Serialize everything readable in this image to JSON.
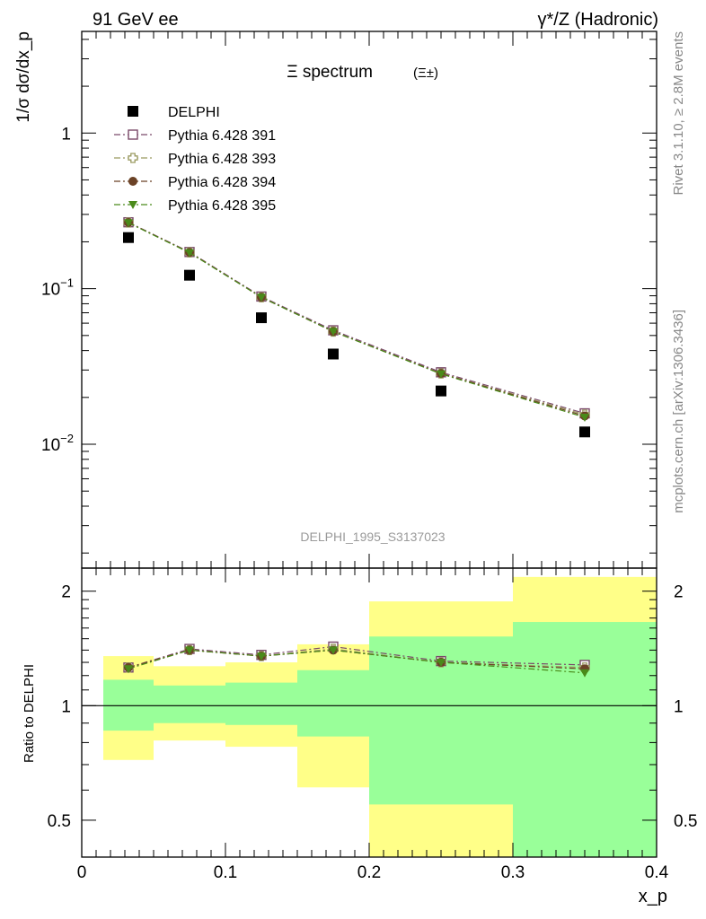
{
  "header": {
    "left": "91 GeV ee",
    "right": "γ*/Z (Hadronic)"
  },
  "side_labels": {
    "top": "Rivet 3.1.10, ≥ 2.8M events",
    "bottom": "mcplots.cern.ch [arXiv:1306.3436]"
  },
  "watermark": "DELPHI_1995_S3137023",
  "chart_data": [
    {
      "type": "scatter",
      "panel": "main",
      "title": "Ξ spectrum (Ξ±)",
      "title_main": "Ξ spectrum",
      "title_sub": "(Ξ±)",
      "ylabel": "1/σ dσ/dx_p",
      "yscale": "log",
      "ylim": [
        0.0016,
        4.5
      ],
      "xlim": [
        0,
        0.4
      ],
      "y_ticks": [
        {
          "value": 1,
          "label": "1"
        },
        {
          "value": 0.1,
          "label": "10",
          "exp": "−1"
        },
        {
          "value": 0.01,
          "label": "10",
          "exp": "−2"
        }
      ],
      "legend_position": "top-left",
      "series": [
        {
          "name": "DELPHI",
          "color": "#000000",
          "marker": "filled-square",
          "x": [
            0.0325,
            0.075,
            0.125,
            0.175,
            0.25,
            0.35
          ],
          "y": [
            0.213,
            0.122,
            0.065,
            0.038,
            0.022,
            0.012
          ]
        },
        {
          "name": "Pythia 6.428 391",
          "color": "#7a4a6a",
          "marker": "open-square",
          "dash": "dash-dot",
          "x": [
            0.0325,
            0.075,
            0.125,
            0.175,
            0.25,
            0.35
          ],
          "y": [
            0.267,
            0.172,
            0.089,
            0.054,
            0.029,
            0.0158
          ]
        },
        {
          "name": "Pythia 6.428 393",
          "color": "#9a9a60",
          "marker": "open-cross",
          "dash": "dash-dot",
          "x": [
            0.0325,
            0.075,
            0.125,
            0.175,
            0.25,
            0.35
          ],
          "y": [
            0.266,
            0.171,
            0.088,
            0.053,
            0.0285,
            0.0155
          ]
        },
        {
          "name": "Pythia 6.428 394",
          "color": "#6b4226",
          "marker": "filled-circle",
          "dash": "dash-dot",
          "x": [
            0.0325,
            0.075,
            0.125,
            0.175,
            0.25,
            0.35
          ],
          "y": [
            0.266,
            0.171,
            0.088,
            0.053,
            0.0285,
            0.0152
          ]
        },
        {
          "name": "Pythia 6.428 395",
          "color": "#4a8a1a",
          "marker": "filled-triangle-down",
          "dash": "dash-dot",
          "x": [
            0.0325,
            0.075,
            0.125,
            0.175,
            0.25,
            0.35
          ],
          "y": [
            0.265,
            0.17,
            0.088,
            0.053,
            0.0283,
            0.0149
          ]
        }
      ]
    },
    {
      "type": "scatter",
      "panel": "ratio",
      "ylabel": "Ratio to DELPHI",
      "xlabel": "x_p",
      "yscale": "log",
      "ylim": [
        0.4,
        2.3
      ],
      "xlim": [
        0,
        0.4
      ],
      "x_ticks": [
        {
          "value": 0,
          "label": "0"
        },
        {
          "value": 0.1,
          "label": "0.1"
        },
        {
          "value": 0.2,
          "label": "0.2"
        },
        {
          "value": 0.3,
          "label": "0.3"
        },
        {
          "value": 0.4,
          "label": "0.4"
        }
      ],
      "y_ticks": [
        {
          "value": 0.5,
          "label": "0.5"
        },
        {
          "value": 1,
          "label": "1"
        },
        {
          "value": 2,
          "label": "2"
        }
      ],
      "reference_line": 1,
      "bins": [
        {
          "x0": 0.015,
          "x1": 0.05,
          "yellow": [
            0.72,
            1.35
          ],
          "green": [
            0.86,
            1.17
          ]
        },
        {
          "x0": 0.05,
          "x1": 0.1,
          "yellow": [
            0.81,
            1.27
          ],
          "green": [
            0.9,
            1.13
          ]
        },
        {
          "x0": 0.1,
          "x1": 0.15,
          "yellow": [
            0.78,
            1.3
          ],
          "green": [
            0.89,
            1.15
          ]
        },
        {
          "x0": 0.15,
          "x1": 0.2,
          "yellow": [
            0.61,
            1.45
          ],
          "green": [
            0.83,
            1.24
          ]
        },
        {
          "x0": 0.2,
          "x1": 0.3,
          "yellow": [
            0.4,
            1.88
          ],
          "green": [
            0.55,
            1.52
          ]
        },
        {
          "x0": 0.3,
          "x1": 0.4,
          "yellow": [
            0.4,
            2.18
          ],
          "green": [
            0.4,
            1.66
          ]
        }
      ],
      "series": [
        {
          "name": "Pythia 6.428 391",
          "x": [
            0.0325,
            0.075,
            0.125,
            0.175,
            0.25,
            0.35
          ],
          "y": [
            1.26,
            1.41,
            1.36,
            1.43,
            1.31,
            1.28
          ]
        },
        {
          "name": "Pythia 6.428 393",
          "x": [
            0.0325,
            0.075,
            0.125,
            0.175,
            0.25,
            0.35
          ],
          "y": [
            1.26,
            1.4,
            1.35,
            1.41,
            1.3,
            1.26
          ]
        },
        {
          "name": "Pythia 6.428 394",
          "x": [
            0.0325,
            0.075,
            0.125,
            0.175,
            0.25,
            0.35
          ],
          "y": [
            1.26,
            1.4,
            1.35,
            1.4,
            1.3,
            1.25
          ]
        },
        {
          "name": "Pythia 6.428 395",
          "x": [
            0.0325,
            0.075,
            0.125,
            0.175,
            0.25,
            0.35
          ],
          "y": [
            1.25,
            1.4,
            1.35,
            1.4,
            1.3,
            1.22
          ]
        }
      ]
    }
  ],
  "colors": {
    "band_yellow": "#ffff88",
    "band_green": "#99ff99"
  }
}
